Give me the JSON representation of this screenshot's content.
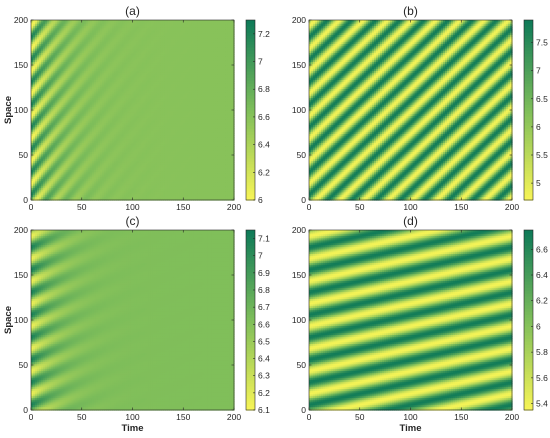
{
  "colors": {
    "low": "#f8f557",
    "mid": "#7fbe5a",
    "high": "#0e7a58",
    "axis": "#262626"
  },
  "chart_data": [
    {
      "type": "heatmap",
      "title": "(a)",
      "xlabel": "",
      "ylabel": "Space",
      "xlim": [
        0,
        200
      ],
      "ylim": [
        0,
        200
      ],
      "xticks": [
        "0",
        "50",
        "100",
        "150",
        "200"
      ],
      "yticks": [
        "0",
        "50",
        "100",
        "150",
        "200"
      ],
      "colorbar": {
        "min": 6,
        "max": 7.3,
        "ticks": [
          "6",
          "6.2",
          "6.4",
          "6.6",
          "6.8",
          "7",
          "7.2"
        ]
      },
      "pattern": {
        "base": 6.6,
        "amplitude": 0.65,
        "spatial_wavelength": 25,
        "phase_speed": 1.3,
        "decay_time": 25
      }
    },
    {
      "type": "heatmap",
      "title": "(b)",
      "xlabel": "",
      "ylabel": "",
      "xlim": [
        0,
        200
      ],
      "ylim": [
        0,
        200
      ],
      "xticks": [
        "0",
        "50",
        "100",
        "150",
        "200"
      ],
      "yticks": [
        "0",
        "50",
        "100",
        "150",
        "200"
      ],
      "colorbar": {
        "min": 4.7,
        "max": 7.9,
        "ticks": [
          "5",
          "5.5",
          "6",
          "6.5",
          "7",
          "7.5"
        ]
      },
      "pattern": {
        "base": 6.3,
        "amplitude": 1.55,
        "spatial_wavelength": 25,
        "phase_speed": 1.05,
        "decay_time": 0
      }
    },
    {
      "type": "heatmap",
      "title": "(c)",
      "xlabel": "Time",
      "ylabel": "Space",
      "xlim": [
        0,
        200
      ],
      "ylim": [
        0,
        200
      ],
      "xticks": [
        "0",
        "50",
        "100",
        "150",
        "200"
      ],
      "yticks": [
        "0",
        "50",
        "100",
        "150",
        "200"
      ],
      "colorbar": {
        "min": 6.1,
        "max": 7.15,
        "ticks": [
          "6.1",
          "6.2",
          "6.3",
          "6.4",
          "6.5",
          "6.6",
          "6.7",
          "6.8",
          "6.9",
          "7",
          "7.1"
        ]
      },
      "pattern": {
        "base": 6.62,
        "amplitude": 0.5,
        "spatial_wavelength": 25,
        "phase_speed": 0.5,
        "decay_time": 22
      }
    },
    {
      "type": "heatmap",
      "title": "(d)",
      "xlabel": "Time",
      "ylabel": "",
      "xlim": [
        0,
        200
      ],
      "ylim": [
        0,
        200
      ],
      "xticks": [
        "0",
        "50",
        "100",
        "150",
        "200"
      ],
      "yticks": [
        "0",
        "50",
        "100",
        "150",
        "200"
      ],
      "colorbar": {
        "min": 5.35,
        "max": 6.75,
        "ticks": [
          "5.4",
          "5.6",
          "5.8",
          "6",
          "6.2",
          "6.4",
          "6.6"
        ]
      },
      "pattern": {
        "base": 6.05,
        "amplitude": 0.68,
        "spatial_wavelength": 25,
        "phase_speed": 0.25,
        "decay_time": 0
      }
    }
  ]
}
